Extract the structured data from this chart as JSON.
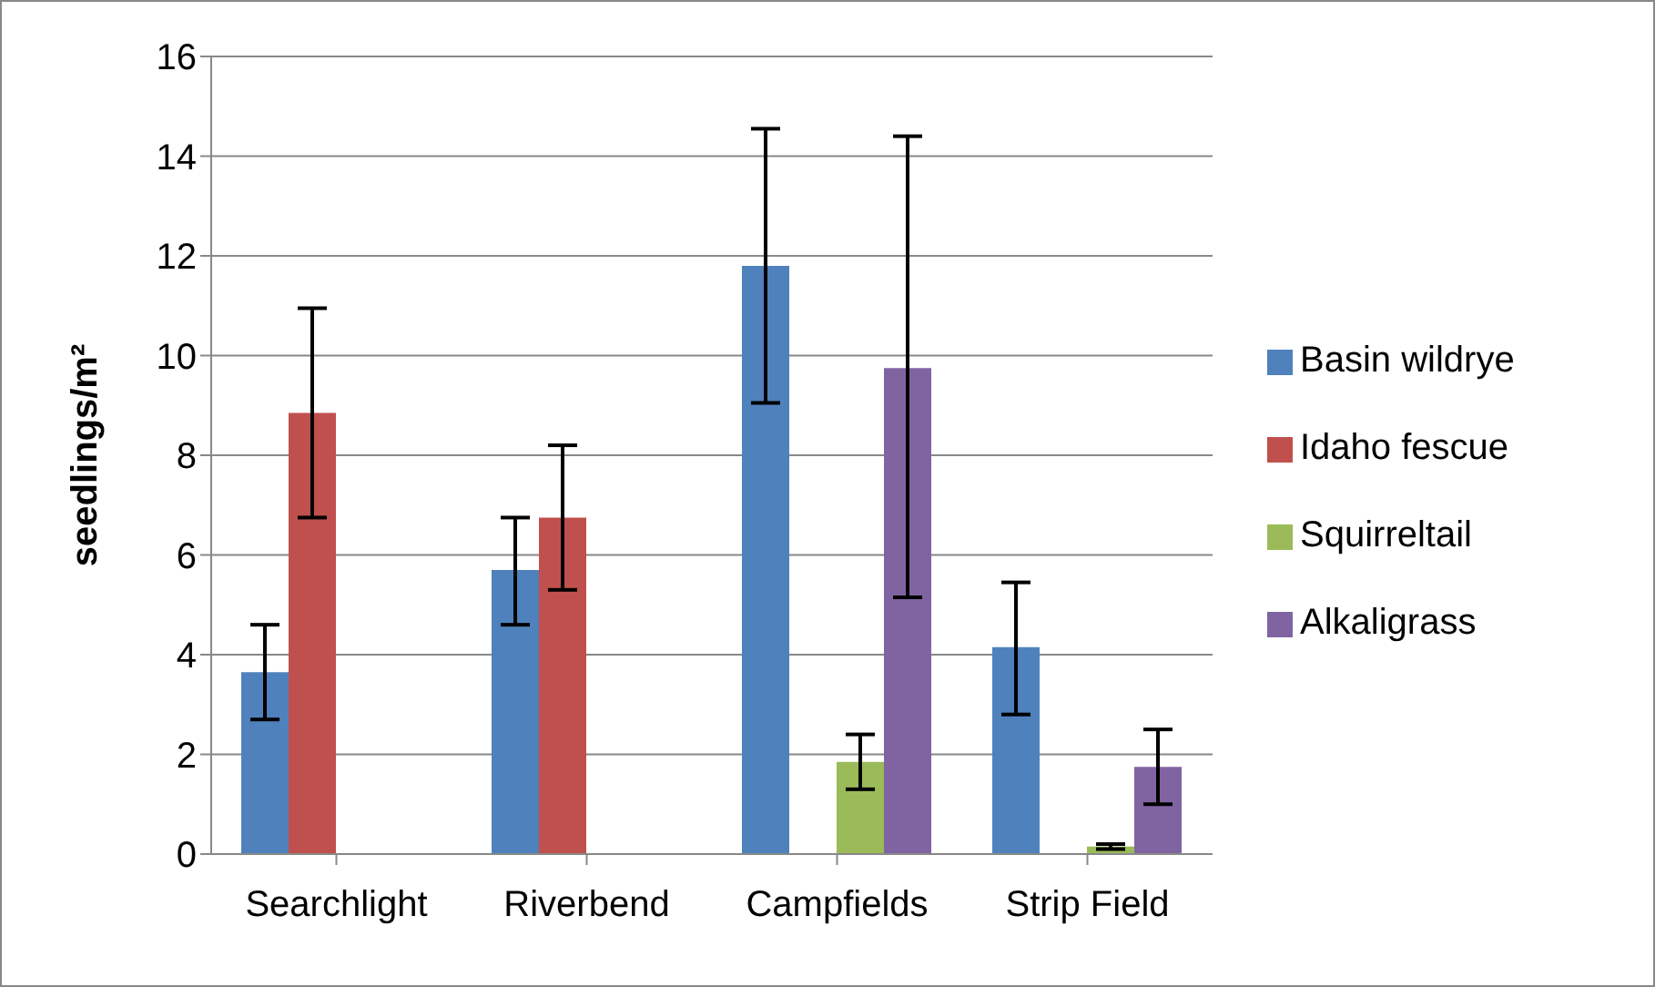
{
  "chart_data": {
    "type": "bar",
    "ylabel": "seedlings/m²",
    "categories": [
      "Searchlight",
      "Riverbend",
      "Campfields",
      "Strip Field"
    ],
    "series": [
      {
        "name": "Basin wildrye",
        "color": "#4f81bd",
        "values": [
          3.65,
          5.7,
          11.8,
          4.15
        ],
        "errors": [
          [
            2.7,
            4.6
          ],
          [
            4.6,
            6.75
          ],
          [
            9.05,
            14.55
          ],
          [
            2.8,
            5.45
          ]
        ]
      },
      {
        "name": "Idaho fescue",
        "color": "#c0504d",
        "values": [
          8.85,
          6.75,
          null,
          null
        ],
        "errors": [
          [
            6.75,
            10.95
          ],
          [
            5.3,
            8.2
          ],
          null,
          null
        ]
      },
      {
        "name": "Squirreltail",
        "color": "#9bbb59",
        "values": [
          null,
          null,
          1.85,
          0.15
        ],
        "errors": [
          null,
          null,
          [
            1.3,
            2.4
          ],
          [
            0.1,
            0.2
          ]
        ]
      },
      {
        "name": "Alkaligrass",
        "color": "#8064a2",
        "values": [
          null,
          null,
          9.75,
          1.75
        ],
        "errors": [
          null,
          null,
          [
            5.15,
            14.4
          ],
          [
            1.0,
            2.5
          ]
        ]
      }
    ],
    "ylim": [
      0,
      16
    ],
    "yticks": [
      0,
      2,
      4,
      6,
      8,
      10,
      12,
      14,
      16
    ],
    "grid": "y",
    "legend": "right"
  }
}
